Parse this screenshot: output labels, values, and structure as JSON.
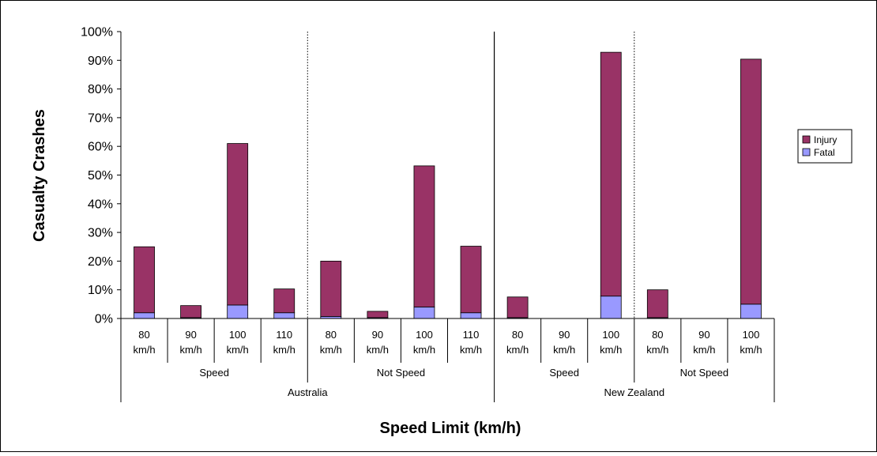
{
  "chart_data": {
    "type": "bar",
    "stacked": true,
    "xlabel": "Speed Limit (km/h)",
    "ylabel": "Casualty Crashes",
    "ylim": [
      0,
      100
    ],
    "y_unit": "%",
    "y_ticks": [
      "0%",
      "10%",
      "20%",
      "30%",
      "40%",
      "50%",
      "60%",
      "70%",
      "80%",
      "90%",
      "100%"
    ],
    "grid": false,
    "legend_position": "right",
    "categories": [
      {
        "line1": "80",
        "line2": "km/h"
      },
      {
        "line1": "90",
        "line2": "km/h"
      },
      {
        "line1": "100",
        "line2": "km/h"
      },
      {
        "line1": "110",
        "line2": "km/h"
      },
      {
        "line1": "80",
        "line2": "km/h"
      },
      {
        "line1": "90",
        "line2": "km/h"
      },
      {
        "line1": "100",
        "line2": "km/h"
      },
      {
        "line1": "110",
        "line2": "km/h"
      },
      {
        "line1": "80",
        "line2": "km/h"
      },
      {
        "line1": "90",
        "line2": "km/h"
      },
      {
        "line1": "100",
        "line2": "km/h"
      },
      {
        "line1": "80",
        "line2": "km/h"
      },
      {
        "line1": "90",
        "line2": "km/h"
      },
      {
        "line1": "100",
        "line2": "km/h"
      }
    ],
    "groups_level2": [
      {
        "label": "Speed",
        "span": 4
      },
      {
        "label": "Not Speed",
        "span": 4
      },
      {
        "label": "Speed",
        "span": 3
      },
      {
        "label": "Not Speed",
        "span": 3
      }
    ],
    "groups_level3": [
      {
        "label": "Australia",
        "span": 8
      },
      {
        "label": "New Zealand",
        "span": 6
      }
    ],
    "series": [
      {
        "name": "Fatal",
        "color": "#9999FF",
        "values": [
          2,
          0.3,
          4.7,
          2,
          0.7,
          0.3,
          4,
          2,
          0.3,
          0,
          7.8,
          0.3,
          0,
          5
        ]
      },
      {
        "name": "Injury",
        "color": "#993366",
        "values": [
          23,
          4.2,
          56.3,
          8.3,
          19.3,
          2.2,
          49.2,
          23.2,
          7.2,
          0,
          85,
          9.7,
          0,
          85.4
        ]
      }
    ],
    "legend_order": [
      "Injury",
      "Fatal"
    ]
  }
}
